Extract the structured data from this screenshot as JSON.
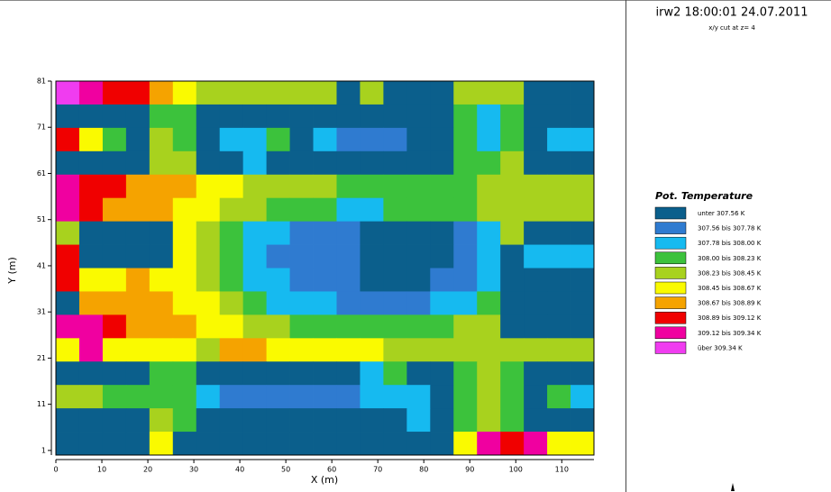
{
  "header": {
    "title": "irw2 18:00:01 24.07.2011",
    "subtitle": "x/y cut at z= 4"
  },
  "chart_data": {
    "type": "heatmap",
    "x_label": "X (m)",
    "y_label": "Y (m)",
    "xlim": [
      0,
      117
    ],
    "ylim": [
      0,
      81
    ],
    "xticks": [
      0,
      10,
      20,
      30,
      40,
      50,
      60,
      70,
      80,
      90,
      100,
      110
    ],
    "yticks": [
      1,
      11,
      21,
      31,
      41,
      51,
      61,
      71,
      81
    ],
    "legend_title": "Pot. Temperature",
    "classes": [
      {
        "name": "unter 307.56 K",
        "color": "#0b5f8c"
      },
      {
        "name": "307.56 bis 307.78 K",
        "color": "#2f7bd0"
      },
      {
        "name": "307.78 bis 308.00 K",
        "color": "#16baf0"
      },
      {
        "name": "308.00 bis 308.23 K",
        "color": "#3cc23c"
      },
      {
        "name": "308.23 bis 308.45 K",
        "color": "#a8d21e"
      },
      {
        "name": "308.45 bis 308.67 K",
        "color": "#fafa00"
      },
      {
        "name": "308.67 bis 308.89 K",
        "color": "#f5a300"
      },
      {
        "name": "308.89 bis 309.12 K",
        "color": "#f00000"
      },
      {
        "name": "309.12 bis 309.34 K",
        "color": "#f000a0"
      },
      {
        "name": "über 309.34 K",
        "color": "#f03cf0"
      }
    ],
    "z": [
      [
        9,
        8,
        7,
        7,
        6,
        5,
        4,
        4,
        4,
        4,
        4,
        4,
        0,
        4,
        0,
        0,
        0,
        4,
        4,
        4,
        0,
        0,
        0
      ],
      [
        0,
        0,
        0,
        0,
        3,
        3,
        0,
        0,
        0,
        0,
        0,
        0,
        0,
        0,
        0,
        0,
        0,
        3,
        2,
        3,
        0,
        0,
        0
      ],
      [
        7,
        5,
        3,
        0,
        4,
        3,
        0,
        2,
        2,
        3,
        0,
        2,
        1,
        1,
        1,
        0,
        0,
        3,
        2,
        3,
        0,
        2,
        2
      ],
      [
        0,
        0,
        0,
        0,
        4,
        4,
        0,
        0,
        2,
        0,
        0,
        0,
        0,
        0,
        0,
        0,
        0,
        3,
        3,
        4,
        0,
        0,
        0
      ],
      [
        8,
        7,
        7,
        6,
        6,
        6,
        5,
        5,
        4,
        4,
        4,
        4,
        3,
        3,
        3,
        3,
        3,
        3,
        4,
        4,
        4,
        4,
        4
      ],
      [
        8,
        7,
        6,
        6,
        6,
        5,
        5,
        4,
        4,
        3,
        3,
        3,
        2,
        2,
        3,
        3,
        3,
        3,
        4,
        4,
        4,
        4,
        4
      ],
      [
        4,
        0,
        0,
        0,
        0,
        5,
        4,
        3,
        2,
        2,
        1,
        1,
        1,
        0,
        0,
        0,
        0,
        1,
        2,
        4,
        0,
        0,
        0
      ],
      [
        7,
        0,
        0,
        0,
        0,
        5,
        4,
        3,
        2,
        1,
        1,
        1,
        1,
        0,
        0,
        0,
        0,
        1,
        2,
        0,
        2,
        2,
        2
      ],
      [
        7,
        5,
        5,
        6,
        5,
        5,
        4,
        3,
        2,
        2,
        1,
        1,
        1,
        0,
        0,
        0,
        1,
        1,
        2,
        0,
        0,
        0,
        0
      ],
      [
        0,
        6,
        6,
        6,
        6,
        5,
        5,
        4,
        3,
        2,
        2,
        2,
        1,
        1,
        1,
        1,
        2,
        2,
        3,
        0,
        0,
        0,
        0
      ],
      [
        8,
        8,
        7,
        6,
        6,
        6,
        5,
        5,
        4,
        4,
        3,
        3,
        3,
        3,
        3,
        3,
        3,
        4,
        4,
        0,
        0,
        0,
        0
      ],
      [
        5,
        8,
        5,
        5,
        5,
        5,
        4,
        6,
        6,
        5,
        5,
        5,
        5,
        5,
        4,
        4,
        4,
        4,
        4,
        4,
        4,
        4,
        4
      ],
      [
        0,
        0,
        0,
        0,
        3,
        3,
        0,
        0,
        0,
        0,
        0,
        0,
        0,
        2,
        3,
        0,
        0,
        3,
        4,
        3,
        0,
        0,
        0
      ],
      [
        4,
        4,
        3,
        3,
        3,
        3,
        2,
        1,
        1,
        1,
        1,
        1,
        1,
        2,
        2,
        2,
        0,
        3,
        4,
        3,
        0,
        3,
        2
      ],
      [
        0,
        0,
        0,
        0,
        4,
        3,
        0,
        0,
        0,
        0,
        0,
        0,
        0,
        0,
        0,
        2,
        0,
        3,
        4,
        3,
        0,
        0,
        0
      ],
      [
        0,
        0,
        0,
        0,
        5,
        0,
        0,
        0,
        0,
        0,
        0,
        0,
        0,
        0,
        0,
        0,
        0,
        5,
        8,
        7,
        8,
        5,
        5
      ]
    ]
  }
}
